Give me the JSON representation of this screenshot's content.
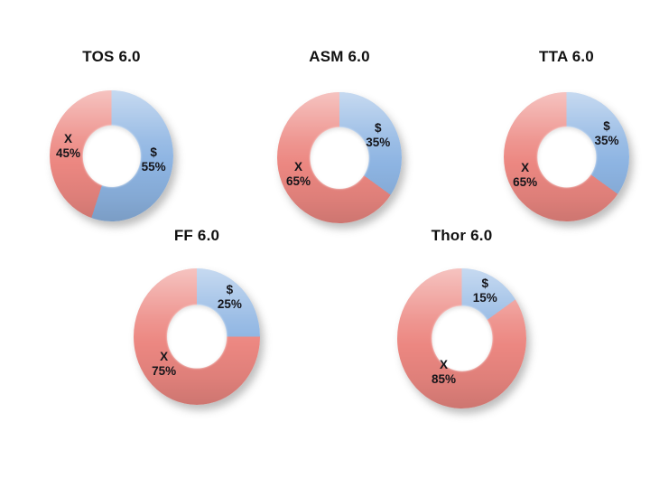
{
  "slide": {
    "background": "#ffffff"
  },
  "colors": {
    "dollar_slice": "#8db4e2",
    "x_slice": "#ec8781",
    "label_text": "#15151a",
    "title_text": "#111111"
  },
  "chart_data": [
    {
      "type": "pie",
      "subtype": "donut",
      "title": "TOS 6.0",
      "hole_ratio": 0.47,
      "start_angle_deg": 0,
      "direction": "clockwise",
      "legend": false,
      "slices": [
        {
          "label": "$",
          "value": 55,
          "pct_text": "55%",
          "color": "#8db4e2"
        },
        {
          "label": "X",
          "value": 45,
          "pct_text": "45%",
          "color": "#ec8781"
        }
      ]
    },
    {
      "type": "pie",
      "subtype": "donut",
      "title": "ASM 6.0",
      "hole_ratio": 0.47,
      "start_angle_deg": 0,
      "direction": "clockwise",
      "legend": false,
      "slices": [
        {
          "label": "$",
          "value": 35,
          "pct_text": "35%",
          "color": "#8db4e2"
        },
        {
          "label": "X",
          "value": 65,
          "pct_text": "65%",
          "color": "#ec8781"
        }
      ]
    },
    {
      "type": "pie",
      "subtype": "donut",
      "title": "TTA 6.0",
      "hole_ratio": 0.47,
      "start_angle_deg": 0,
      "direction": "clockwise",
      "legend": false,
      "slices": [
        {
          "label": "$",
          "value": 35,
          "pct_text": "35%",
          "color": "#8db4e2"
        },
        {
          "label": "X",
          "value": 65,
          "pct_text": "65%",
          "color": "#ec8781"
        }
      ]
    },
    {
      "type": "pie",
      "subtype": "donut",
      "title": "FF 6.0",
      "hole_ratio": 0.47,
      "start_angle_deg": 0,
      "direction": "clockwise",
      "legend": false,
      "slices": [
        {
          "label": "$",
          "value": 25,
          "pct_text": "25%",
          "color": "#8db4e2"
        },
        {
          "label": "X",
          "value": 75,
          "pct_text": "75%",
          "color": "#ec8781"
        }
      ]
    },
    {
      "type": "pie",
      "subtype": "donut",
      "title": "Thor 6.0",
      "hole_ratio": 0.47,
      "start_angle_deg": 0,
      "direction": "clockwise",
      "legend": false,
      "slices": [
        {
          "label": "$",
          "value": 15,
          "pct_text": "15%",
          "color": "#8db4e2"
        },
        {
          "label": "X",
          "value": 85,
          "pct_text": "85%",
          "color": "#ec8781"
        }
      ]
    }
  ]
}
